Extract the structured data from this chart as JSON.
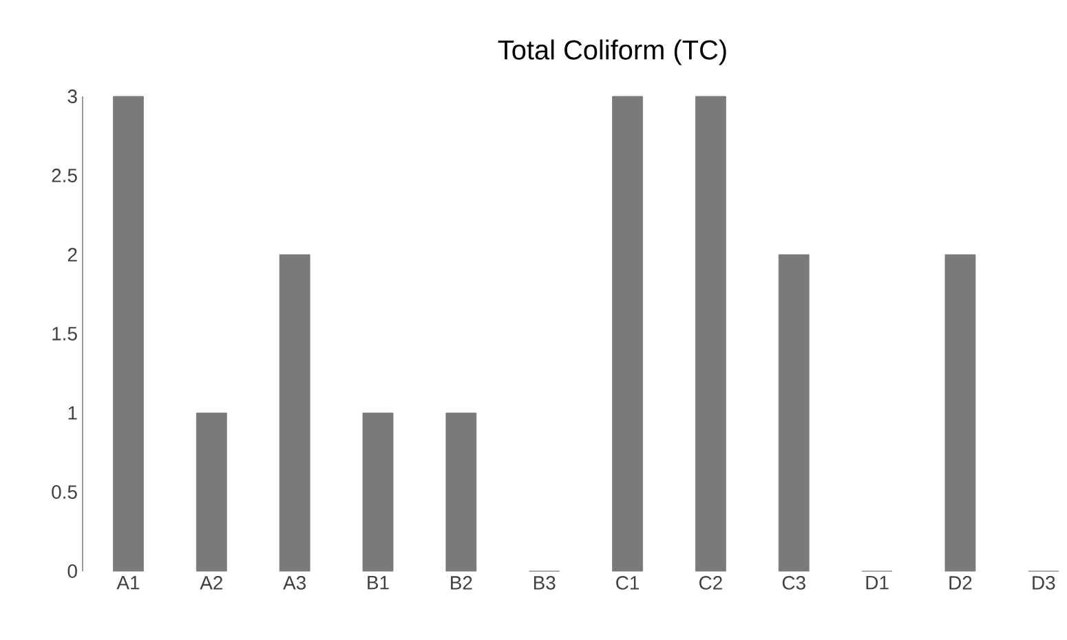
{
  "chart_data": {
    "type": "bar",
    "title": "Total Coliform (TC)",
    "categories": [
      "A1",
      "A2",
      "A3",
      "B1",
      "B2",
      "B3",
      "C1",
      "C2",
      "C3",
      "D1",
      "D2",
      "D3"
    ],
    "values": [
      3,
      1,
      2,
      1,
      1,
      0,
      3,
      3,
      2,
      0,
      2,
      0
    ],
    "color": "#7a7a7a",
    "ylim": [
      0,
      3
    ],
    "yticks": [
      0,
      0.5,
      1,
      1.5,
      2,
      2.5,
      3
    ],
    "grid": false
  }
}
